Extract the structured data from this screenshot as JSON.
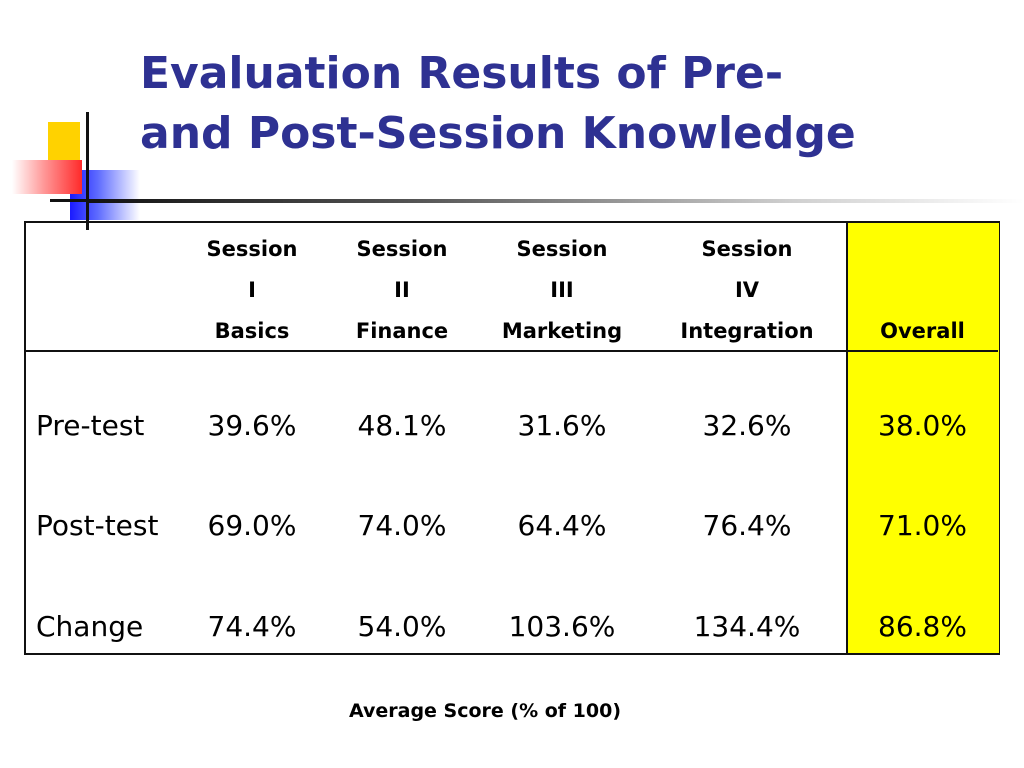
{
  "slide": {
    "title_line1": "Evaluation Results of Pre-",
    "title_line2": "and Post-Session Knowledge",
    "title_color": "#2e3192",
    "highlight_color": "#ffff00"
  },
  "table": {
    "columns": [
      {
        "line1": "Session",
        "line2": "I",
        "line3": "Basics"
      },
      {
        "line1": "Session",
        "line2": "II",
        "line3": "Finance"
      },
      {
        "line1": "Session",
        "line2": "III",
        "line3": "Marketing"
      },
      {
        "line1": "Session",
        "line2": "IV",
        "line3": "Integration"
      }
    ],
    "overall_header": "Overall",
    "rows": [
      {
        "label": "Pre-test",
        "values": [
          "39.6%",
          "48.1%",
          "31.6%",
          "32.6%"
        ],
        "overall": "38.0%"
      },
      {
        "label": "Post-test",
        "values": [
          "69.0%",
          "74.0%",
          "64.4%",
          "76.4%"
        ],
        "overall": "71.0%"
      },
      {
        "label": "Change",
        "values": [
          "74.4%",
          "54.0%",
          "103.6%",
          "134.4%"
        ],
        "overall": "86.8%"
      }
    ]
  },
  "caption": "Average Score (% of 100)"
}
